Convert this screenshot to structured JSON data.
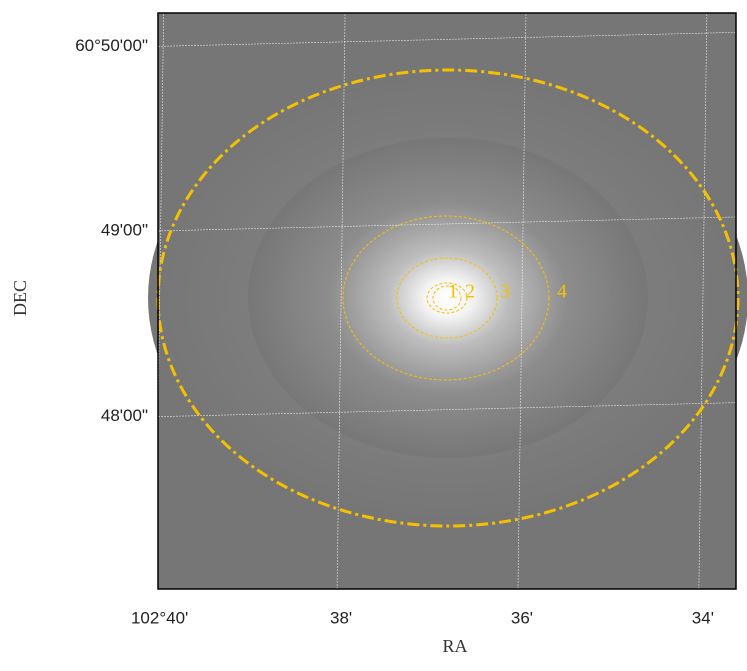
{
  "chart_data": {
    "type": "image",
    "xlabel": "RA",
    "ylabel": "DEC",
    "xlim": [
      102.667,
      102.5606
    ],
    "ylim": [
      60.7845,
      60.8363
    ],
    "xticks": [
      {
        "value": 102.6667,
        "label": "102°40'"
      },
      {
        "value": 102.6333,
        "label": "38'"
      },
      {
        "value": 102.6,
        "label": "36'"
      },
      {
        "value": 102.5667,
        "label": "34'"
      }
    ],
    "yticks": [
      {
        "value": 60.8,
        "label": "48'00\""
      },
      {
        "value": 60.8167,
        "label": "49'00\""
      },
      {
        "value": 60.8333,
        "label": "60°50'00\""
      }
    ],
    "grid": true,
    "grid_color": "#ffffff",
    "aperture_color": "#f5c000",
    "apertures": [
      "1",
      "2",
      "3",
      "4"
    ]
  }
}
